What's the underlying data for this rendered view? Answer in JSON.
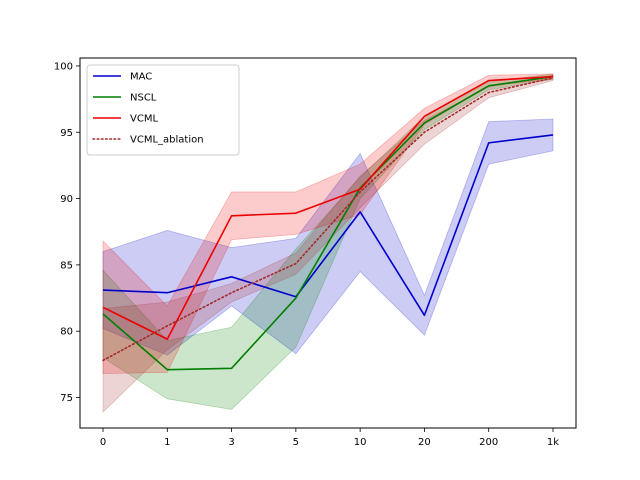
{
  "chart_data": {
    "type": "line",
    "title": "",
    "xlabel": "",
    "ylabel": "",
    "categories": [
      "0",
      "1",
      "3",
      "5",
      "10",
      "20",
      "200",
      "1k"
    ],
    "ylim": [
      72.7,
      100.6
    ],
    "yticks": [
      75,
      80,
      85,
      90,
      95,
      100
    ],
    "grid": false,
    "legend_position": "top-left",
    "series": [
      {
        "name": "MAC",
        "color": "#0000cc",
        "style": "solid",
        "values": [
          83.1,
          82.9,
          84.1,
          82.6,
          89.0,
          81.2,
          94.2,
          94.8
        ],
        "band_low": [
          80.2,
          78.2,
          81.9,
          78.3,
          84.5,
          79.7,
          92.6,
          93.6
        ],
        "band_high": [
          86.0,
          87.6,
          86.3,
          87.0,
          93.4,
          82.7,
          95.8,
          96.0
        ]
      },
      {
        "name": "NSCL",
        "color": "#008000",
        "style": "solid",
        "values": [
          81.3,
          77.1,
          77.2,
          82.5,
          90.8,
          95.7,
          98.5,
          99.2
        ],
        "band_low": [
          78.0,
          74.9,
          74.1,
          78.8,
          90.0,
          95.2,
          98.2,
          99.0
        ],
        "band_high": [
          84.6,
          79.3,
          80.3,
          86.2,
          91.6,
          96.2,
          98.8,
          99.4
        ]
      },
      {
        "name": "VCML",
        "color": "#ee0000",
        "style": "solid",
        "values": [
          81.8,
          79.4,
          88.7,
          88.9,
          90.7,
          96.2,
          98.9,
          99.2
        ],
        "band_low": [
          76.8,
          76.9,
          86.9,
          87.3,
          88.8,
          95.6,
          98.5,
          99.0
        ],
        "band_high": [
          86.8,
          81.9,
          90.5,
          90.5,
          92.6,
          96.8,
          99.3,
          99.4
        ]
      },
      {
        "name": "VCML_ablation",
        "color": "#a52a2a",
        "style": "dotted",
        "values": [
          77.8,
          80.4,
          82.9,
          85.1,
          90.5,
          95.0,
          98.0,
          99.1
        ],
        "band_low": [
          73.9,
          78.6,
          82.2,
          84.3,
          89.3,
          94.1,
          97.6,
          98.9
        ],
        "band_high": [
          81.7,
          82.2,
          83.6,
          85.9,
          91.7,
          95.9,
          98.4,
          99.3
        ]
      }
    ]
  }
}
